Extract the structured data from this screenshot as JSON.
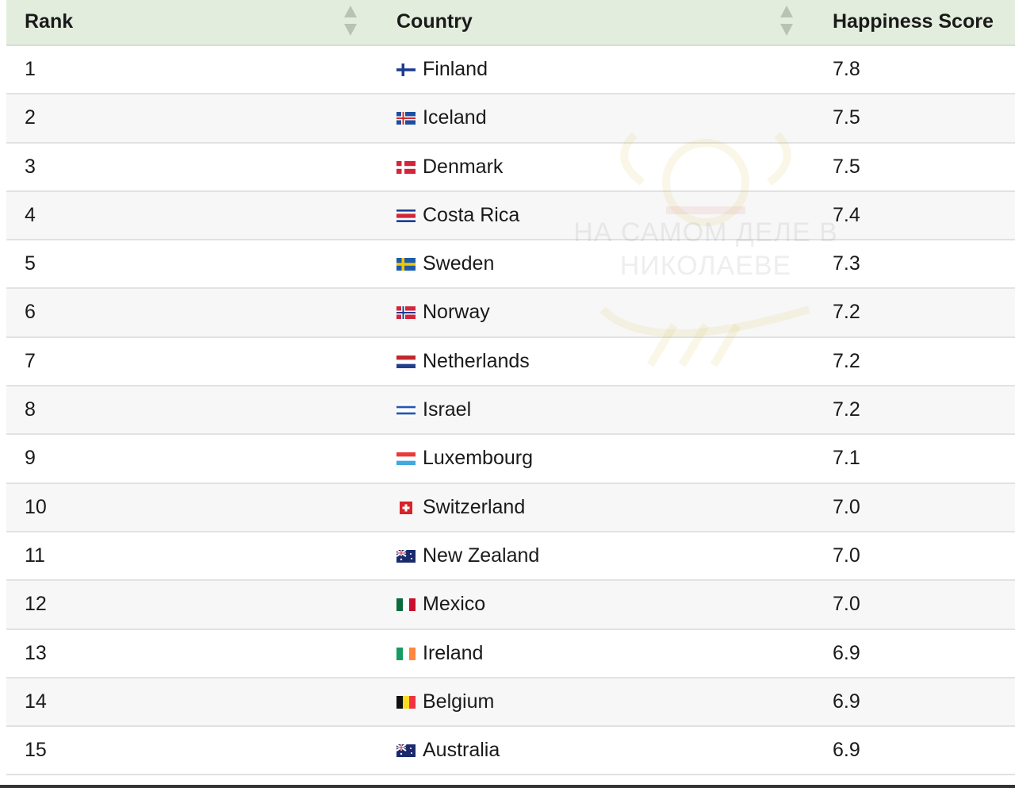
{
  "header": {
    "rank": "Rank",
    "country": "Country",
    "score": "Happiness Score"
  },
  "rows": [
    {
      "rank": "1",
      "country": "Finland",
      "score": "7.8",
      "flag": {
        "type": "cross",
        "bg": "#ffffff",
        "cross": "#1d3c8f"
      }
    },
    {
      "rank": "2",
      "country": "Iceland",
      "score": "7.5",
      "flag": {
        "type": "cross",
        "bg": "#1d4fa0",
        "cross": "#d72828",
        "border": "#ffffff"
      }
    },
    {
      "rank": "3",
      "country": "Denmark",
      "score": "7.5",
      "flag": {
        "type": "cross",
        "bg": "#d4253a",
        "cross": "#ffffff"
      }
    },
    {
      "rank": "4",
      "country": "Costa Rica",
      "score": "7.4",
      "flag": {
        "type": "h",
        "colors": [
          "#1b3f95",
          "#ffffff",
          "#d4253a",
          "#d4253a",
          "#ffffff",
          "#1b3f95"
        ]
      }
    },
    {
      "rank": "5",
      "country": "Sweden",
      "score": "7.3",
      "flag": {
        "type": "cross",
        "bg": "#1d5ca8",
        "cross": "#f4c400"
      }
    },
    {
      "rank": "6",
      "country": "Norway",
      "score": "7.2",
      "flag": {
        "type": "cross",
        "bg": "#d4253a",
        "cross": "#1d3c8f",
        "border": "#ffffff"
      }
    },
    {
      "rank": "7",
      "country": "Netherlands",
      "score": "7.2",
      "flag": {
        "type": "h",
        "colors": [
          "#c1272d",
          "#ffffff",
          "#22408c"
        ]
      }
    },
    {
      "rank": "8",
      "country": "Israel",
      "score": "7.2",
      "flag": {
        "type": "h",
        "colors": [
          "#ffffff",
          "#2257b5",
          "#ffffff",
          "#ffffff",
          "#2257b5",
          "#ffffff"
        ]
      }
    },
    {
      "rank": "9",
      "country": "Luxembourg",
      "score": "7.1",
      "flag": {
        "type": "h",
        "colors": [
          "#ea3b3b",
          "#ffffff",
          "#3fa9e0"
        ]
      }
    },
    {
      "rank": "10",
      "country": "Switzerland",
      "score": "7.0",
      "flag": {
        "type": "swiss",
        "bg": "#d8232a",
        "cross": "#ffffff"
      }
    },
    {
      "rank": "11",
      "country": "New Zealand",
      "score": "7.0",
      "flag": {
        "type": "union",
        "bg": "#1a2a6c",
        "accent": "#d4253a"
      }
    },
    {
      "rank": "12",
      "country": "Mexico",
      "score": "7.0",
      "flag": {
        "type": "v",
        "colors": [
          "#0a6b3c",
          "#ffffff",
          "#c8102e"
        ]
      }
    },
    {
      "rank": "13",
      "country": "Ireland",
      "score": "6.9",
      "flag": {
        "type": "v",
        "colors": [
          "#169b62",
          "#ffffff",
          "#ff883e"
        ]
      }
    },
    {
      "rank": "14",
      "country": "Belgium",
      "score": "6.9",
      "flag": {
        "type": "v",
        "colors": [
          "#111111",
          "#fdda24",
          "#ef3340"
        ]
      }
    },
    {
      "rank": "15",
      "country": "Australia",
      "score": "6.9",
      "flag": {
        "type": "union",
        "bg": "#1a2a6c",
        "accent": "#d4253a"
      }
    }
  ],
  "watermark": {
    "line1": "НА САМОМ ДЕЛЕ В",
    "line2": "НИКОЛАЕВЕ"
  },
  "colors": {
    "header_bg": "#e3eddd",
    "row_alt": "#f7f7f7",
    "divider": "#e2e2e2"
  }
}
